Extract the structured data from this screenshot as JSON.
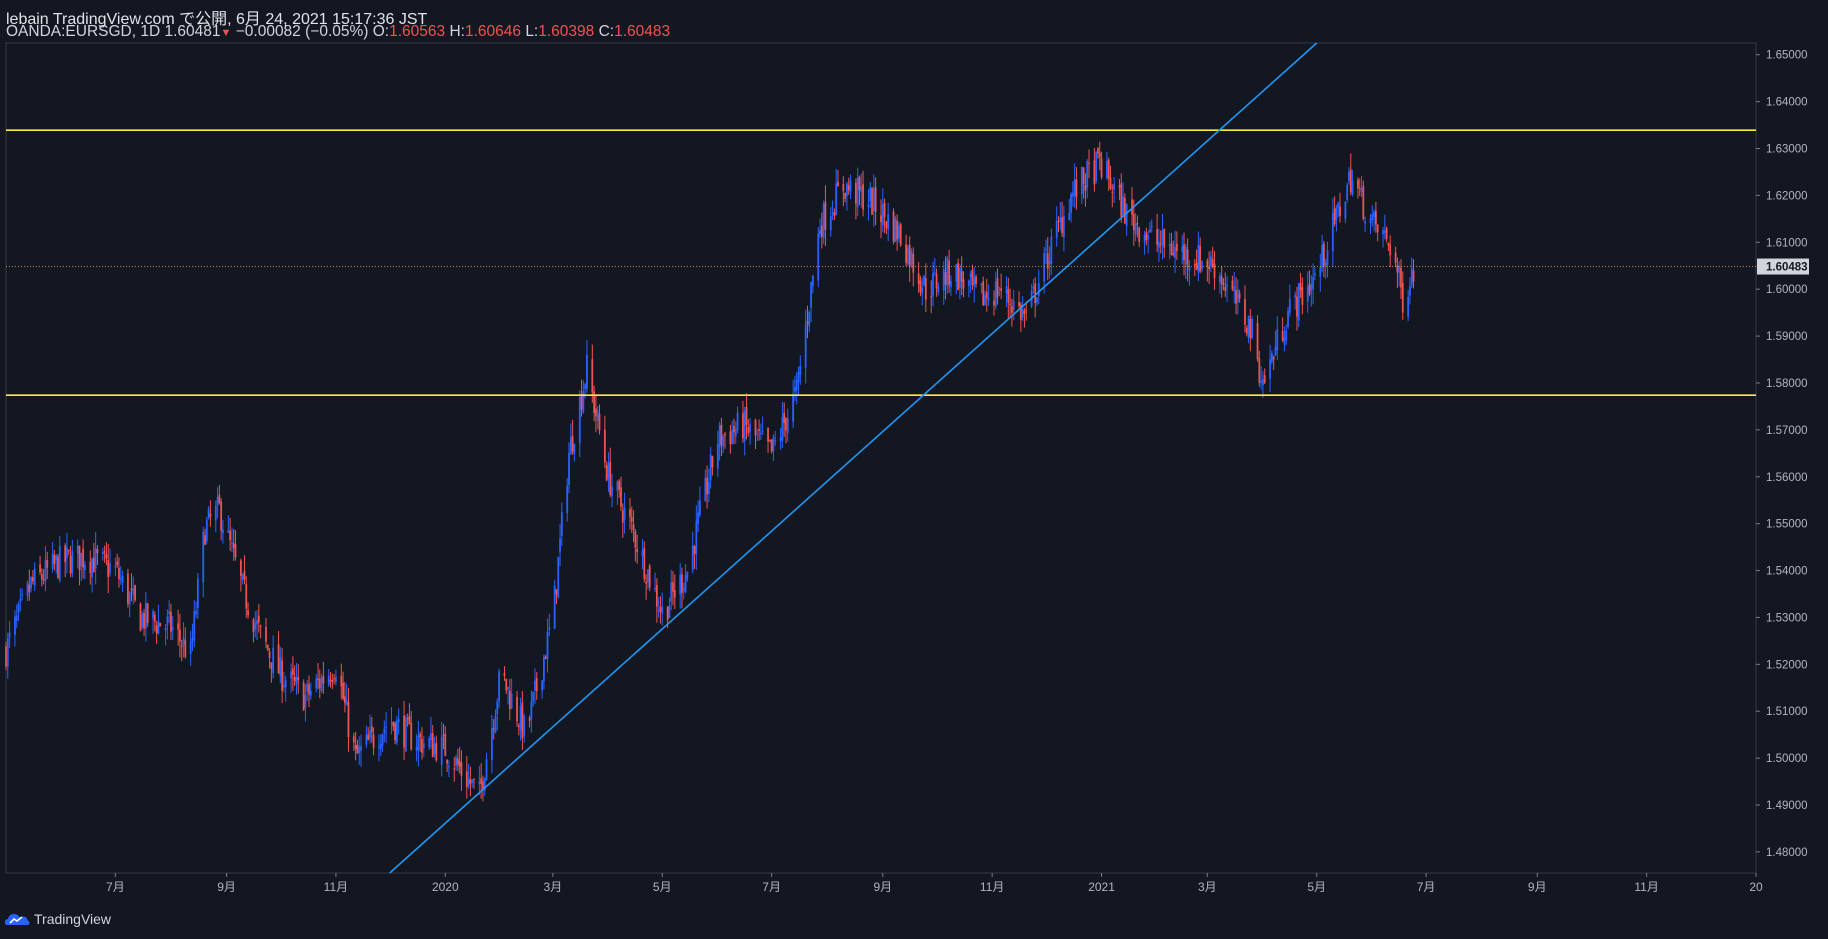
{
  "header": {
    "publish_line": "lebain TradingView.com で公開, 6月 24, 2021 15:17:36 JST",
    "symbol": "OANDA:EURSGD, 1D",
    "last": "1.60481",
    "change": "−0.00082 (−0.05%)",
    "o_label": "O:",
    "o": "1.60563",
    "h_label": "H:",
    "h": "1.60646",
    "l_label": "L:",
    "l": "1.60398",
    "c_label": "C:",
    "c": "1.60483"
  },
  "footer": {
    "brand": "TradingView"
  },
  "colors": {
    "background": "#131722",
    "up_candle": "#2962ff",
    "down_candle": "#ef5350",
    "support_resistance": "#ffeb3b",
    "trendline": "#2196f3",
    "axis_text": "#b2b5be",
    "price_label_bg": "#d1d4dc"
  },
  "chart_data": {
    "type": "candlestick",
    "symbol": "OANDA:EURSGD",
    "interval": "1D",
    "y_axis_ticks": [
      "1.65000",
      "1.64000",
      "1.63000",
      "1.62000",
      "1.61000",
      "1.60000",
      "1.59000",
      "1.58000",
      "1.57000",
      "1.56000",
      "1.55000",
      "1.54000",
      "1.53000",
      "1.52000",
      "1.51000",
      "1.50000",
      "1.49000",
      "1.48000"
    ],
    "ylim": [
      1.4755,
      1.6525
    ],
    "x_axis_ticks": [
      {
        "date": "2019-07-01",
        "label": "7月"
      },
      {
        "date": "2019-09-01",
        "label": "9月"
      },
      {
        "date": "2019-11-01",
        "label": "11月"
      },
      {
        "date": "2020-01-01",
        "label": "2020"
      },
      {
        "date": "2020-03-01",
        "label": "3月"
      },
      {
        "date": "2020-05-01",
        "label": "5月"
      },
      {
        "date": "2020-07-01",
        "label": "7月"
      },
      {
        "date": "2020-09-01",
        "label": "9月"
      },
      {
        "date": "2020-11-01",
        "label": "11月"
      },
      {
        "date": "2021-01-01",
        "label": "2021"
      },
      {
        "date": "2021-03-01",
        "label": "3月"
      },
      {
        "date": "2021-05-01",
        "label": "5月"
      },
      {
        "date": "2021-07-01",
        "label": "7月"
      },
      {
        "date": "2021-09-01",
        "label": "9月"
      },
      {
        "date": "2021-11-01",
        "label": "11月"
      },
      {
        "date": "2022-01-01",
        "label": "20"
      }
    ],
    "xlim": [
      "2019-05-01",
      "2022-01-01"
    ],
    "current_price": "1.60483",
    "price_path": [
      [
        "2019-05-01",
        1.523
      ],
      [
        "2019-05-15",
        1.537
      ],
      [
        "2019-06-01",
        1.542
      ],
      [
        "2019-06-15",
        1.543
      ],
      [
        "2019-07-01",
        1.54
      ],
      [
        "2019-07-15",
        1.53
      ],
      [
        "2019-08-01",
        1.528
      ],
      [
        "2019-08-12",
        1.522
      ],
      [
        "2019-08-20",
        1.549
      ],
      [
        "2019-08-28",
        1.553
      ],
      [
        "2019-09-10",
        1.536
      ],
      [
        "2019-09-20",
        1.526
      ],
      [
        "2019-10-01",
        1.518
      ],
      [
        "2019-10-15",
        1.513
      ],
      [
        "2019-11-01",
        1.52
      ],
      [
        "2019-11-12",
        1.5
      ],
      [
        "2019-12-01",
        1.508
      ],
      [
        "2019-12-15",
        1.504
      ],
      [
        "2020-01-01",
        1.502
      ],
      [
        "2020-01-20",
        1.492
      ],
      [
        "2020-02-01",
        1.518
      ],
      [
        "2020-02-15",
        1.505
      ],
      [
        "2020-03-01",
        1.53
      ],
      [
        "2020-03-10",
        1.565
      ],
      [
        "2020-03-20",
        1.583
      ],
      [
        "2020-04-01",
        1.56
      ],
      [
        "2020-04-15",
        1.548
      ],
      [
        "2020-05-01",
        1.531
      ],
      [
        "2020-05-15",
        1.54
      ],
      [
        "2020-06-01",
        1.568
      ],
      [
        "2020-06-15",
        1.571
      ],
      [
        "2020-07-01",
        1.565
      ],
      [
        "2020-07-15",
        1.578
      ],
      [
        "2020-07-28",
        1.614
      ],
      [
        "2020-08-10",
        1.622
      ],
      [
        "2020-08-25",
        1.619
      ],
      [
        "2020-09-10",
        1.612
      ],
      [
        "2020-09-25",
        1.6
      ],
      [
        "2020-10-10",
        1.604
      ],
      [
        "2020-10-25",
        1.598
      ],
      [
        "2020-11-05",
        1.6
      ],
      [
        "2020-11-20",
        1.594
      ],
      [
        "2020-12-01",
        1.606
      ],
      [
        "2020-12-15",
        1.62
      ],
      [
        "2020-12-31",
        1.627
      ],
      [
        "2021-01-15",
        1.616
      ],
      [
        "2021-02-01",
        1.61
      ],
      [
        "2021-02-20",
        1.607
      ],
      [
        "2021-03-05",
        1.605
      ],
      [
        "2021-03-25",
        1.592
      ],
      [
        "2021-04-01",
        1.58
      ],
      [
        "2021-04-15",
        1.595
      ],
      [
        "2021-05-01",
        1.603
      ],
      [
        "2021-05-10",
        1.613
      ],
      [
        "2021-05-20",
        1.624
      ],
      [
        "2021-06-01",
        1.614
      ],
      [
        "2021-06-12",
        1.609
      ],
      [
        "2021-06-18",
        1.598
      ],
      [
        "2021-06-24",
        1.6048
      ]
    ],
    "horizontal_lines": [
      {
        "price": 1.6339,
        "color": "#ffeb3b"
      },
      {
        "price": 1.5774,
        "color": "#ffeb3b"
      }
    ],
    "trendline": {
      "start": [
        "2019-12-01",
        1.4755
      ],
      "end": [
        "2021-05-01",
        1.6525
      ],
      "color": "#2196f3"
    }
  }
}
